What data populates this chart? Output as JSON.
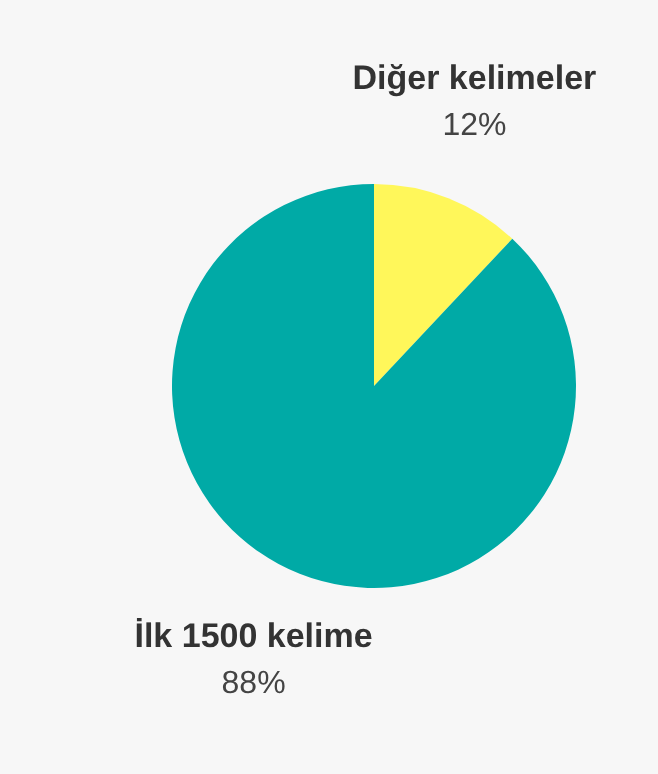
{
  "chart_data": {
    "type": "pie",
    "categories": [
      "Diğer kelimeler",
      "İlk 1500 kelime"
    ],
    "values": [
      12,
      88
    ],
    "colors": [
      "#fff75a",
      "#00aaa6"
    ],
    "value_labels": [
      "12%",
      "88%"
    ]
  }
}
